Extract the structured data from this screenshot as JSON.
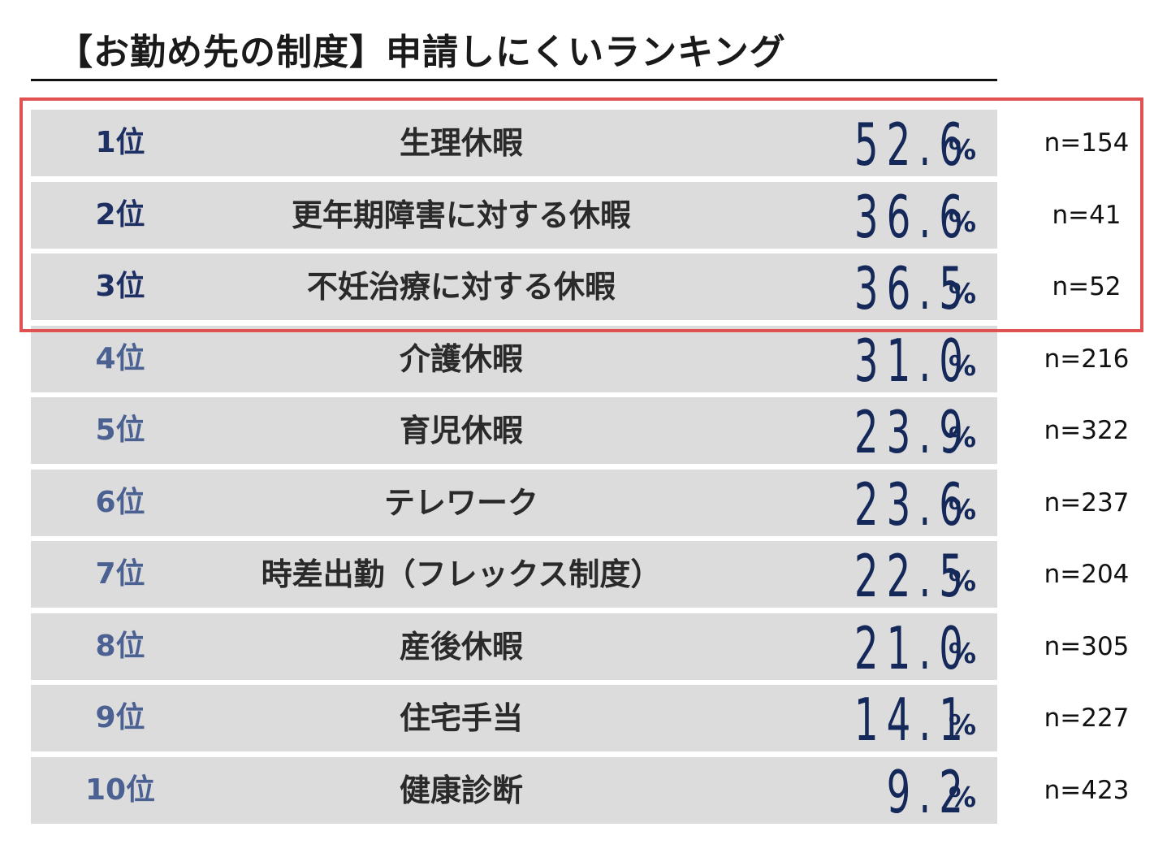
{
  "title": "【お勤め先の制度】申請しにくいランキング",
  "colors": {
    "row_background": "#dcdcdc",
    "value_text": "#14285a",
    "rank_top3": "#1d2f63",
    "rank_rest": "#4a6192",
    "highlight_border": "#e05252"
  },
  "highlight": {
    "covers_ranks": [
      1,
      2,
      3
    ]
  },
  "chart_data": {
    "type": "table",
    "title": "【お勤め先の制度】申請しにくいランキング",
    "columns": [
      "rank",
      "item",
      "value",
      "unit",
      "n"
    ],
    "rows": [
      {
        "rank": "1位",
        "item": "生理休暇",
        "value": "52.6",
        "unit": "%",
        "n": "n=154"
      },
      {
        "rank": "2位",
        "item": "更年期障害に対する休暇",
        "value": "36.6",
        "unit": "%",
        "n": "n=41"
      },
      {
        "rank": "3位",
        "item": "不妊治療に対する休暇",
        "value": "36.5",
        "unit": "%",
        "n": "n=52"
      },
      {
        "rank": "4位",
        "item": "介護休暇",
        "value": "31.0",
        "unit": "%",
        "n": "n=216"
      },
      {
        "rank": "5位",
        "item": "育児休暇",
        "value": "23.9",
        "unit": "%",
        "n": "n=322"
      },
      {
        "rank": "6位",
        "item": "テレワーク",
        "value": "23.6",
        "unit": "%",
        "n": "n=237"
      },
      {
        "rank": "7位",
        "item": "時差出勤（フレックス制度）",
        "value": "22.5",
        "unit": "%",
        "n": "n=204"
      },
      {
        "rank": "8位",
        "item": "産後休暇",
        "value": "21.0",
        "unit": "%",
        "n": "n=305"
      },
      {
        "rank": "9位",
        "item": "住宅手当",
        "value": "14.1",
        "unit": "%",
        "n": "n=227"
      },
      {
        "rank": "10位",
        "item": "健康診断",
        "value": "9.2",
        "unit": "%",
        "n": "n=423"
      }
    ]
  }
}
